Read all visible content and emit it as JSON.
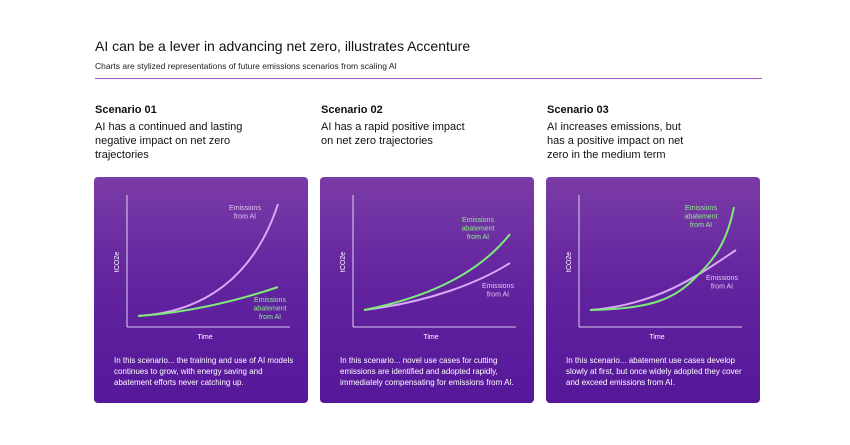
{
  "header": {
    "title": "AI can be a lever in advancing net zero, illustrates Accenture",
    "subtitle": "Charts are stylized representations of future emissions scenarios from scaling AI"
  },
  "scenarios": [
    {
      "title": "Scenario 01",
      "description": "AI has a continued and lasting negative impact on net zero trajectories",
      "y_axis": "tCO2e",
      "x_axis": "Time",
      "purple_label": [
        "Emissions",
        "from AI"
      ],
      "green_label": [
        "Emissions",
        "abatement",
        "from AI"
      ],
      "note": "In this scenario... the training and use of AI models continues to grow, with energy saving and abatement efforts never catching up."
    },
    {
      "title": "Scenario 02",
      "description": "AI has a rapid positive impact on net zero trajectories",
      "y_axis": "tCO2e",
      "x_axis": "Time",
      "purple_label": [
        "Emissions",
        "from AI"
      ],
      "green_label": [
        "Emissions",
        "abatement",
        "from AI"
      ],
      "note": "In this scenario... novel use cases for cutting emissions are identified and adopted rapidly, immediately compensating for emissions from AI."
    },
    {
      "title": "Scenario 03",
      "description": "AI increases emissions, but has a positive impact on net zero in the medium term",
      "y_axis": "tCO2e",
      "x_axis": "Time",
      "purple_label": [
        "Emissions",
        "from AI"
      ],
      "green_label": [
        "Emissions",
        "abatement",
        "from AI"
      ],
      "note": "In this scenario... abatement use cases develop slowly at first, but once widely adopted they cover and exceed emissions from AI."
    }
  ]
}
